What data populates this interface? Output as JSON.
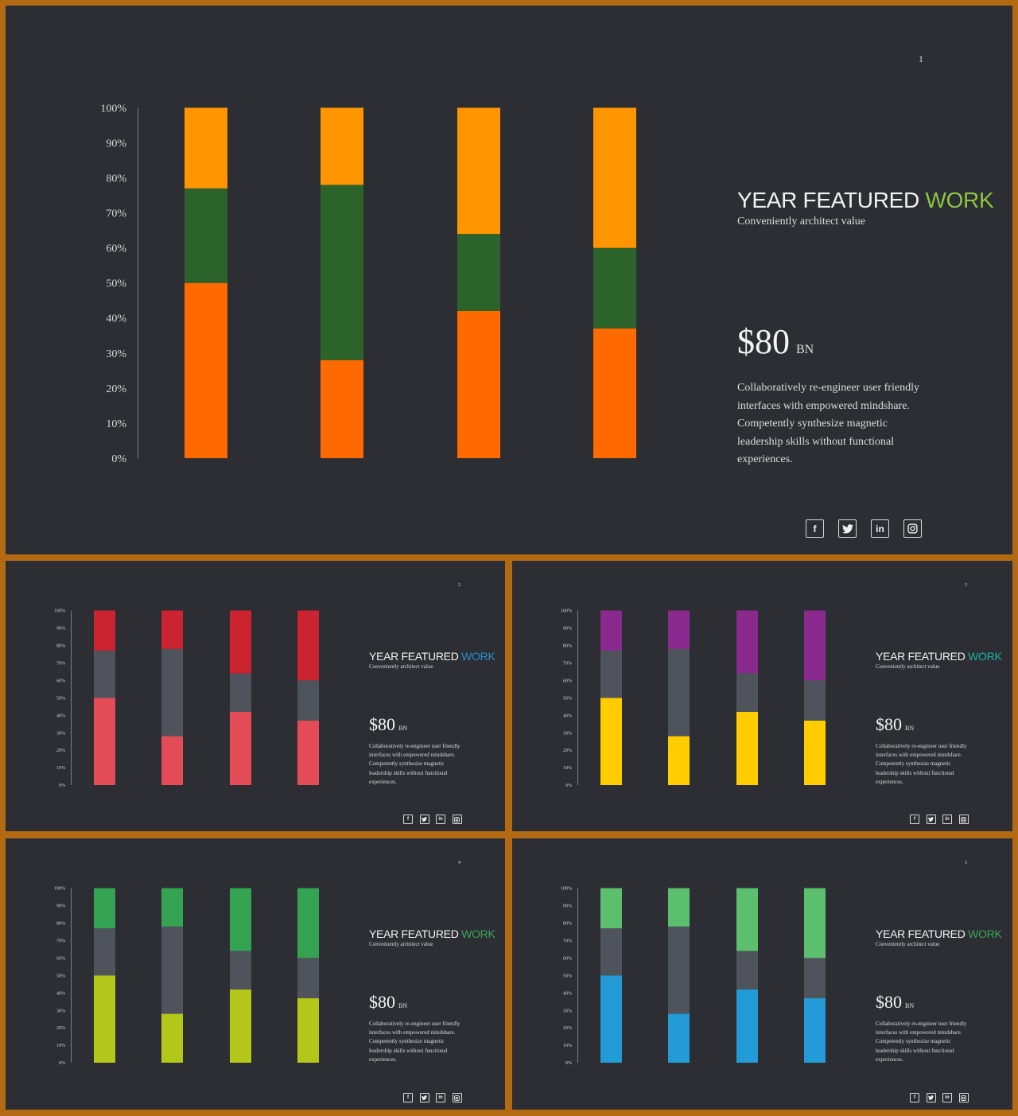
{
  "slides": [
    {
      "number": "1",
      "title_main": "YEAR FEATURED ",
      "title_accent": "WORK",
      "subtitle": "Conveniently architect value",
      "price_value": "$80",
      "price_unit": "BN",
      "description": "Collaboratively re-engineer user friendly interfaces with empowered mindshare. Competently synthesize magnetic leadership skills without functional experiences.",
      "socials": [
        {
          "icon": "facebook-icon",
          "glyph": "f"
        },
        {
          "icon": "twitter-icon",
          "glyph": "t"
        },
        {
          "icon": "linkedin-icon",
          "glyph": "in"
        },
        {
          "icon": "instagram-icon",
          "glyph": "ig"
        }
      ],
      "colors": {
        "accent": "#8dc63f",
        "bottom": "#ff6a00",
        "middle": "#2b632b",
        "top": "#ff9500"
      }
    },
    {
      "number": "2",
      "title_main": "YEAR FEATURED ",
      "title_accent": "WORK",
      "subtitle": "Conveniently architect value",
      "price_value": "$80",
      "price_unit": "BN",
      "description": "Collaboratively re-engineer user friendly interfaces with empowered mindshare. Competently synthesize magnetic leadership skills without functional experiences.",
      "socials": [
        {
          "icon": "facebook-icon",
          "glyph": "f"
        },
        {
          "icon": "twitter-icon",
          "glyph": "t"
        },
        {
          "icon": "linkedin-icon",
          "glyph": "in"
        },
        {
          "icon": "instagram-icon",
          "glyph": "ig"
        }
      ],
      "colors": {
        "accent": "#2a8fd6",
        "bottom": "#e34b57",
        "middle": "#4e535c",
        "top": "#cc2330"
      }
    },
    {
      "number": "3",
      "title_main": "YEAR FEATURED ",
      "title_accent": "WORK",
      "subtitle": "Conveniently architect value",
      "price_value": "$80",
      "price_unit": "BN",
      "description": "Collaboratively re-engineer user friendly interfaces with empowered mindshare. Competently synthesize magnetic leadership skills without functional experiences.",
      "socials": [
        {
          "icon": "facebook-icon",
          "glyph": "f"
        },
        {
          "icon": "twitter-icon",
          "glyph": "t"
        },
        {
          "icon": "linkedin-icon",
          "glyph": "in"
        },
        {
          "icon": "instagram-icon",
          "glyph": "ig"
        }
      ],
      "colors": {
        "accent": "#19b3a4",
        "bottom": "#ffcc00",
        "middle": "#4e535c",
        "top": "#8a2a8f"
      }
    },
    {
      "number": "4",
      "title_main": "YEAR FEATURED ",
      "title_accent": "WORK",
      "subtitle": "Conveniently architect value",
      "price_value": "$80",
      "price_unit": "BN",
      "description": "Collaboratively re-engineer user friendly interfaces with empowered mindshare. Competently synthesize magnetic leadership skills without functional experiences.",
      "socials": [
        {
          "icon": "facebook-icon",
          "glyph": "f"
        },
        {
          "icon": "twitter-icon",
          "glyph": "t"
        },
        {
          "icon": "linkedin-icon",
          "glyph": "in"
        },
        {
          "icon": "instagram-icon",
          "glyph": "ig"
        }
      ],
      "colors": {
        "accent": "#3aa655",
        "bottom": "#b3c61a",
        "middle": "#4e535c",
        "top": "#34a352"
      }
    },
    {
      "number": "5",
      "title_main": "YEAR FEATURED ",
      "title_accent": "WORK",
      "subtitle": "Conveniently architect value",
      "price_value": "$80",
      "price_unit": "BN",
      "description": "Collaboratively re-engineer user friendly interfaces with empowered mindshare. Competently synthesize magnetic leadership skills without functional experiences.",
      "socials": [
        {
          "icon": "facebook-icon",
          "glyph": "f"
        },
        {
          "icon": "twitter-icon",
          "glyph": "t"
        },
        {
          "icon": "linkedin-icon",
          "glyph": "in"
        },
        {
          "icon": "instagram-icon",
          "glyph": "ig"
        }
      ],
      "colors": {
        "accent": "#3aa655",
        "bottom": "#239bd6",
        "middle": "#4e535c",
        "top": "#5cbf6e"
      }
    }
  ],
  "chart_data": [
    {
      "type": "bar",
      "stacked": true,
      "title": "",
      "xlabel": "",
      "ylabel": "",
      "ylim": [
        0,
        100
      ],
      "y_ticks": [
        "0%",
        "10%",
        "20%",
        "30%",
        "40%",
        "50%",
        "60%",
        "70%",
        "80%",
        "90%",
        "100%"
      ],
      "categories": [
        "",
        "",
        "",
        ""
      ],
      "series": [
        {
          "values": [
            50,
            28,
            42,
            37
          ]
        },
        {
          "values": [
            27,
            50,
            22,
            23
          ]
        },
        {
          "values": [
            23,
            22,
            36,
            40
          ]
        }
      ],
      "legend": "none",
      "grid": false
    },
    {
      "type": "bar",
      "stacked": true,
      "title": "",
      "xlabel": "",
      "ylabel": "",
      "ylim": [
        0,
        100
      ],
      "y_ticks": [
        "0%",
        "10%",
        "20%",
        "30%",
        "40%",
        "50%",
        "60%",
        "70%",
        "80%",
        "90%",
        "100%"
      ],
      "categories": [
        "",
        "",
        "",
        ""
      ],
      "series": [
        {
          "values": [
            50,
            28,
            42,
            37
          ]
        },
        {
          "values": [
            27,
            50,
            22,
            23
          ]
        },
        {
          "values": [
            23,
            22,
            36,
            40
          ]
        }
      ],
      "legend": "none",
      "grid": false
    },
    {
      "type": "bar",
      "stacked": true,
      "title": "",
      "xlabel": "",
      "ylabel": "",
      "ylim": [
        0,
        100
      ],
      "y_ticks": [
        "0%",
        "10%",
        "20%",
        "30%",
        "40%",
        "50%",
        "60%",
        "70%",
        "80%",
        "90%",
        "100%"
      ],
      "categories": [
        "",
        "",
        "",
        ""
      ],
      "series": [
        {
          "values": [
            50,
            28,
            42,
            37
          ]
        },
        {
          "values": [
            27,
            50,
            22,
            23
          ]
        },
        {
          "values": [
            23,
            22,
            36,
            40
          ]
        }
      ],
      "legend": "none",
      "grid": false
    },
    {
      "type": "bar",
      "stacked": true,
      "title": "",
      "xlabel": "",
      "ylabel": "",
      "ylim": [
        0,
        100
      ],
      "y_ticks": [
        "0%",
        "10%",
        "20%",
        "30%",
        "40%",
        "50%",
        "60%",
        "70%",
        "80%",
        "90%",
        "100%"
      ],
      "categories": [
        "",
        "",
        "",
        ""
      ],
      "series": [
        {
          "values": [
            50,
            28,
            42,
            37
          ]
        },
        {
          "values": [
            27,
            50,
            22,
            23
          ]
        },
        {
          "values": [
            23,
            22,
            36,
            40
          ]
        }
      ],
      "legend": "none",
      "grid": false
    },
    {
      "type": "bar",
      "stacked": true,
      "title": "",
      "xlabel": "",
      "ylabel": "",
      "ylim": [
        0,
        100
      ],
      "y_ticks": [
        "0%",
        "10%",
        "20%",
        "30%",
        "40%",
        "50%",
        "60%",
        "70%",
        "80%",
        "90%",
        "100%"
      ],
      "categories": [
        "",
        "",
        "",
        ""
      ],
      "series": [
        {
          "values": [
            50,
            28,
            42,
            37
          ]
        },
        {
          "values": [
            27,
            50,
            22,
            23
          ]
        },
        {
          "values": [
            23,
            22,
            36,
            40
          ]
        }
      ],
      "legend": "none",
      "grid": false
    }
  ]
}
